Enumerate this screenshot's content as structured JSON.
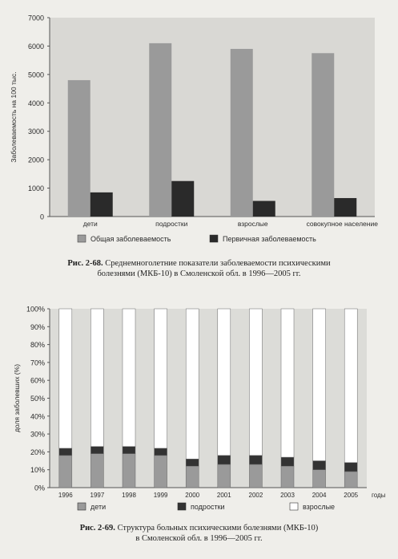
{
  "chart_data": [
    {
      "type": "bar",
      "categories": [
        "дети",
        "подростки",
        "взрослые",
        "совокупное население"
      ],
      "series": [
        {
          "name": "Общая заболеваемость",
          "values": [
            4800,
            6100,
            5900,
            5750
          ],
          "color": "#9a9a9a"
        },
        {
          "name": "Первичная заболеваемость",
          "values": [
            850,
            1250,
            550,
            650
          ],
          "color": "#2a2a2a"
        }
      ],
      "ylabel": "Заболеваемость на 100 тыс.",
      "ylim": [
        0,
        7000
      ],
      "yticks": [
        "0",
        "1000",
        "2000",
        "3000",
        "4000",
        "5000",
        "6000",
        "7000"
      ],
      "grid": false,
      "legend": "bottom"
    },
    {
      "type": "bar",
      "stacked": true,
      "categories": [
        "1996",
        "1997",
        "1998",
        "1999",
        "2000",
        "2001",
        "2002",
        "2003",
        "2004",
        "2005"
      ],
      "x_unit": "годы",
      "series": [
        {
          "name": "дети",
          "values": [
            18,
            19,
            19,
            18,
            12,
            13,
            13,
            12,
            10,
            9
          ],
          "color": "#9a9a9a"
        },
        {
          "name": "подростки",
          "values": [
            4,
            4,
            4,
            4,
            4,
            5,
            5,
            5,
            5,
            5
          ],
          "color": "#333333"
        },
        {
          "name": "взрослые",
          "values": [
            78,
            77,
            77,
            78,
            84,
            82,
            82,
            83,
            85,
            86
          ],
          "color": "#ffffff"
        }
      ],
      "ylabel": "доля заболевших (%)",
      "ylim": [
        0,
        100
      ],
      "yticks": [
        "0%",
        "10%",
        "20%",
        "30%",
        "40%",
        "50%",
        "60%",
        "70%",
        "80%",
        "90%",
        "100%"
      ],
      "grid": false,
      "legend": "bottom"
    }
  ],
  "captions": {
    "fig1_label": "Рис. 2-68.",
    "fig1_line1": "Среднемноголетние показатели заболеваемости психическими",
    "fig1_line2": "болезнями (МКБ-10) в Смоленской обл. в 1996—2005 гг.",
    "fig2_label": "Рис. 2-69.",
    "fig2_line1": "Структура больных психическими болезнями (МКБ-10)",
    "fig2_line2": "в Смоленской обл. в 1996—2005 гг."
  }
}
